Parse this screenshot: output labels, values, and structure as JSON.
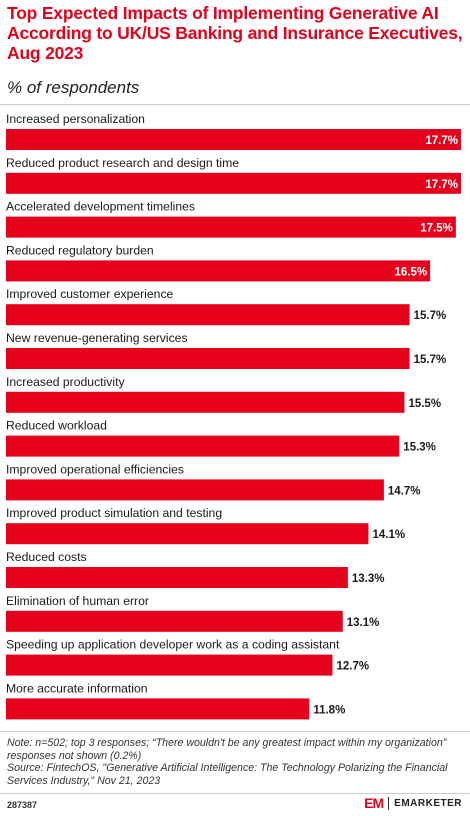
{
  "header": {
    "title": "Top Expected Impacts of Implementing Generative AI According to UK/US Banking and Insurance Executives, Aug 2023",
    "subtitle": "% of respondents"
  },
  "chart_data": {
    "type": "bar",
    "orientation": "horizontal",
    "categories": [
      "Increased personalization",
      "Reduced product research and design time",
      "Accelerated development timelines",
      "Reduced regulatory burden",
      "Improved customer experience",
      "New revenue-generating services",
      "Increased productivity",
      "Reduced workload",
      "Improved operational efficiencies",
      "Improved product simulation and testing",
      "Reduced costs",
      "Elimination of human error",
      "Speeding up application developer work as a coding assistant",
      "More accurate information"
    ],
    "values": [
      17.7,
      17.7,
      17.5,
      16.5,
      15.7,
      15.7,
      15.5,
      15.3,
      14.7,
      14.1,
      13.3,
      13.1,
      12.7,
      11.8
    ],
    "value_labels": [
      "17.7%",
      "17.7%",
      "17.5%",
      "16.5%",
      "15.7%",
      "15.7%",
      "15.5%",
      "15.3%",
      "14.7%",
      "14.1%",
      "13.3%",
      "13.1%",
      "12.7%",
      "11.8%"
    ],
    "xlim": [
      0,
      17.7
    ],
    "grid": false,
    "bar_color": "#e5001c"
  },
  "footer": {
    "note": "Note: n=502; top 3 responses; “There wouldn't be any greatest impact within my organization” responses not shown (0.2%)",
    "source": "Source: FintechOS, \"Generative Artificial Intelligence: The Technology Polarizing the Financial Services Industry,\" Nov 21, 2023",
    "chart_id": "287387",
    "logo_mark": "EM",
    "logo_text": "EMARKETER"
  }
}
